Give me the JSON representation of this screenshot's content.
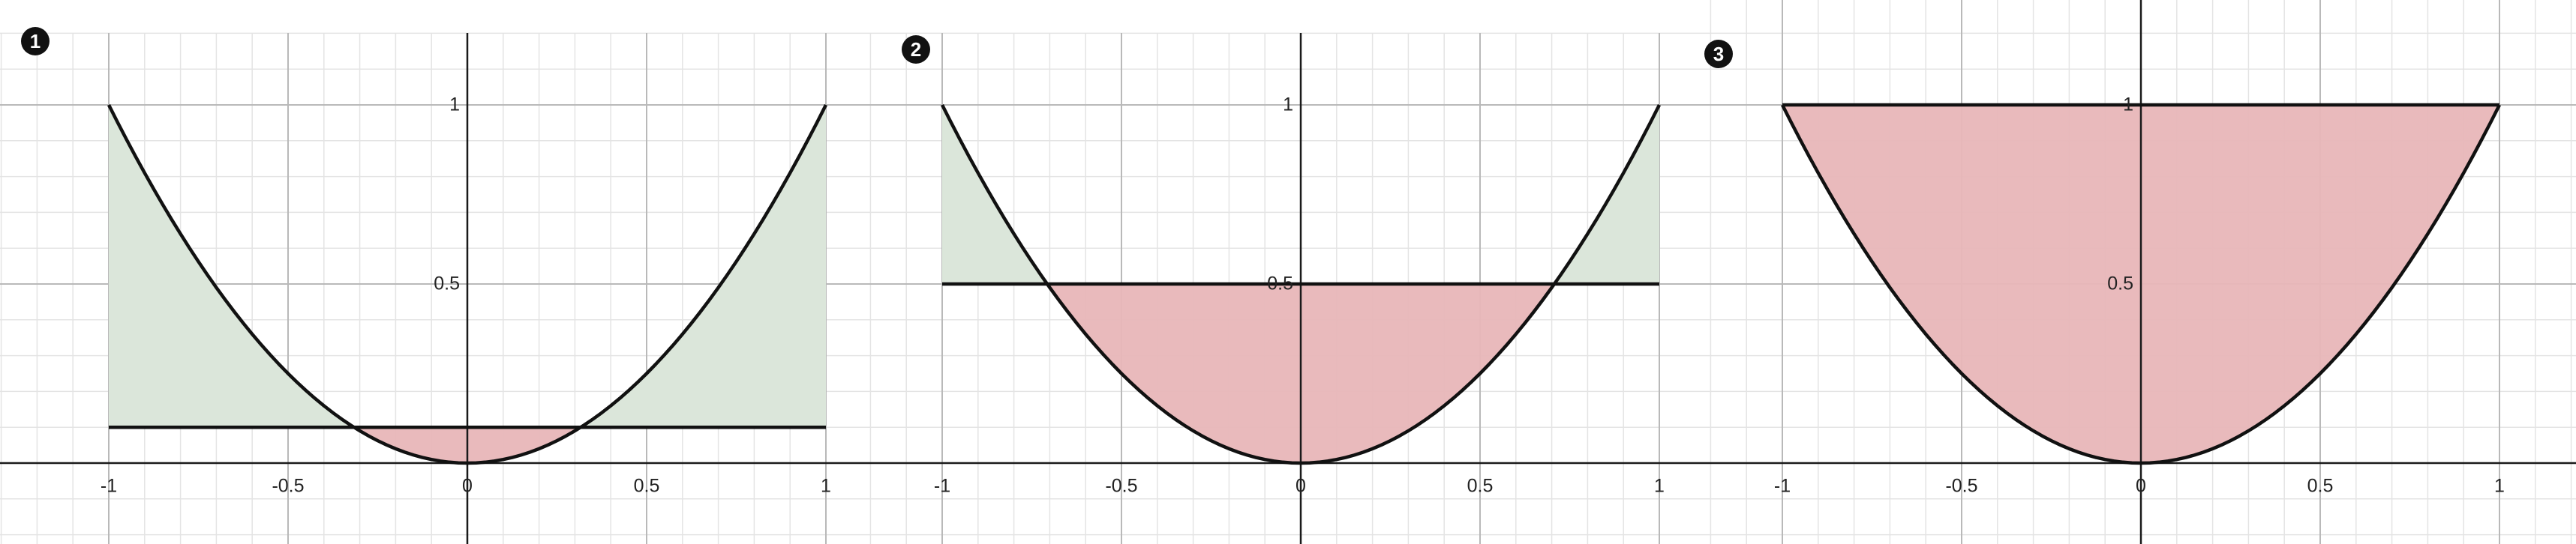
{
  "colors": {
    "background": "#ffffff",
    "minor_grid": "#e4e4e4",
    "major_grid": "#b9b9b9",
    "axis": "#1a1a1a",
    "curve": "#111111",
    "area_above_curve": "#dbe6da",
    "area_below_line": "#e8b6b8",
    "badge": "#111111"
  },
  "chart_data": [
    {
      "type": "area",
      "badge": "1",
      "curve": {
        "name": "",
        "function": "x^2",
        "x_range": [
          -1,
          1
        ]
      },
      "line": {
        "name": "",
        "y": 0.1
      },
      "shading": "green between curve and line where x^2 > 0.1; red between line and curve where x^2 < 0.1",
      "x_ticks": [
        "-1",
        "-0.5",
        "0",
        "0.5",
        "1"
      ],
      "y_ticks": [
        "0.5",
        "1"
      ],
      "xlim": [
        -1.05,
        1.05
      ],
      "ylim": [
        -0.22,
        1.2
      ],
      "grid": true
    },
    {
      "type": "area",
      "badge": "2",
      "curve": {
        "name": "",
        "function": "x^2",
        "x_range": [
          -1,
          1
        ]
      },
      "line": {
        "name": "",
        "y": 0.5
      },
      "shading": "green between curve and line where x^2 > 0.5; red between line and curve where x^2 < 0.5",
      "x_ticks": [
        "-1",
        "-0.5",
        "0",
        "0.5",
        "1"
      ],
      "y_ticks": [
        "0.5",
        "1"
      ],
      "xlim": [
        -1.05,
        1.05
      ],
      "ylim": [
        -0.22,
        1.2
      ],
      "grid": true
    },
    {
      "type": "area",
      "badge": "3",
      "curve": {
        "name": "",
        "function": "x^2",
        "x_range": [
          -1,
          1
        ]
      },
      "line": {
        "name": "",
        "y": 1
      },
      "shading": "red between line and curve over the whole interval",
      "x_ticks": [
        "-1",
        "-0.5",
        "0",
        "0.5",
        "1"
      ],
      "y_ticks": [
        "0.5",
        "1"
      ],
      "xlim": [
        -1.05,
        1.05
      ],
      "ylim": [
        -0.22,
        1.2
      ],
      "grid": true
    }
  ]
}
